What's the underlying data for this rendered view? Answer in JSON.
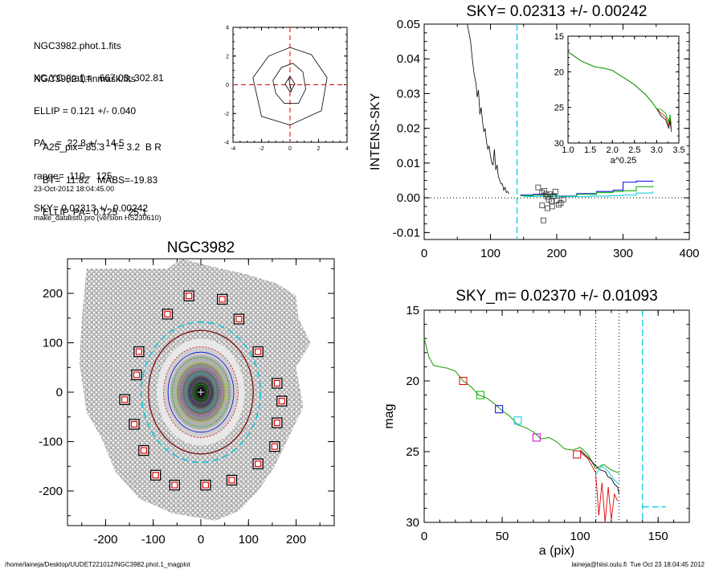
{
  "header": {
    "lines_a": [
      "NGC3982.phot.1.fits",
      "NGC3982.1.finmask.fits"
    ],
    "lines_b": [
      "XC,YC (iraf)=   667.03, 302.81",
      "ELLIP = 0.121 +/- 0.040",
      "PA    =  22.8 +/-  14.5",
      "range=  110.-  125.",
      "SKY= 0.02313 +/- 0.00242"
    ],
    "lines_c": [
      "A25_pix= 85.3   T= 3.2  B R",
      "BT=  11.82   MABS=-19.83",
      "ELLIP, PA= 0.125    25.1"
    ],
    "date_line": "23-Oct-2012 18:04:45.00",
    "program_line": "make_datalist0.pro (version HS230610)"
  },
  "footer": {
    "left": "/home/laineja/Desktop/UUDET221012/NGC3982.phot.1_magplot",
    "right": "laineja@hiisi.oulu.fi  Tue Oct 23 18:04:45 2012"
  },
  "colors": {
    "axis": "#000000",
    "red": "#e00000",
    "green": "#00b000",
    "blue": "#0000e0",
    "cyan": "#00c8e0",
    "magenta": "#d000d0",
    "gray": "#808080",
    "dark_red": "#7a0000"
  },
  "chart_data": [
    {
      "id": "contour",
      "type": "contour",
      "xlim": [
        -4,
        4
      ],
      "ylim": [
        -4,
        4
      ],
      "xticks": [
        -4,
        -2,
        0,
        2,
        4
      ],
      "yticks": [
        -4,
        -2,
        0,
        2,
        4
      ],
      "contours": [
        [
          [
            -2.6,
            0.5
          ],
          [
            -1.5,
            2.0
          ],
          [
            0,
            2.6
          ],
          [
            1.5,
            2.1
          ],
          [
            2.6,
            0.5
          ],
          [
            2.2,
            -1.8
          ],
          [
            0,
            -2.8
          ],
          [
            -2.0,
            -2.2
          ],
          [
            -2.6,
            0.5
          ]
        ],
        [
          [
            -1.2,
            0.3
          ],
          [
            -0.6,
            1.2
          ],
          [
            0.2,
            1.5
          ],
          [
            0.9,
            0.9
          ],
          [
            1.1,
            -0.3
          ],
          [
            0.6,
            -1.3
          ],
          [
            -0.4,
            -1.3
          ],
          [
            -1.0,
            -0.6
          ],
          [
            -1.2,
            0.3
          ]
        ],
        [
          [
            0,
            0.6
          ],
          [
            0.35,
            0.05
          ],
          [
            0,
            -0.5
          ],
          [
            -0.35,
            0.05
          ],
          [
            0,
            0.6
          ]
        ]
      ]
    },
    {
      "id": "sky",
      "type": "line",
      "title": "SKY= 0.02313 +/- 0.00242",
      "ylabel": "INTENS-SKY",
      "xlim": [
        0,
        400
      ],
      "ylim": [
        -0.012,
        0.05
      ],
      "xticks": [
        0,
        100,
        200,
        300,
        400
      ],
      "yticks": [
        -0.01,
        0.0,
        0.01,
        0.02,
        0.03,
        0.04,
        0.05
      ],
      "ytick_labels": [
        "-0.01",
        "0.00",
        "0.01",
        "0.02",
        "0.03",
        "0.04",
        "0.05"
      ],
      "vline": 140,
      "main_profile": [
        [
          65,
          0.05
        ],
        [
          70,
          0.045
        ],
        [
          72,
          0.041
        ],
        [
          75,
          0.036
        ],
        [
          78,
          0.033
        ],
        [
          80,
          0.029
        ],
        [
          82,
          0.031
        ],
        [
          84,
          0.024
        ],
        [
          86,
          0.026
        ],
        [
          88,
          0.022
        ],
        [
          90,
          0.019
        ],
        [
          92,
          0.02
        ],
        [
          94,
          0.016
        ],
        [
          96,
          0.014
        ],
        [
          98,
          0.015
        ],
        [
          100,
          0.012
        ],
        [
          102,
          0.01
        ],
        [
          104,
          0.0095
        ],
        [
          106,
          0.014
        ],
        [
          108,
          0.008
        ],
        [
          110,
          0.0095
        ],
        [
          112,
          0.006
        ],
        [
          114,
          0.005
        ],
        [
          116,
          0.004
        ],
        [
          118,
          0.004
        ],
        [
          120,
          0.0022
        ],
        [
          122,
          0.003
        ],
        [
          124,
          0.0015
        ],
        [
          126,
          0.0018
        ],
        [
          128,
          0.0012
        ]
      ],
      "sky_boxes": [
        [
          172,
          0.003
        ],
        [
          178,
          0.0015
        ],
        [
          181,
          0.002
        ],
        [
          184,
          0.001
        ],
        [
          186,
          0.0003
        ],
        [
          188,
          -0.0005
        ],
        [
          190,
          0.001
        ],
        [
          192,
          -0.001
        ],
        [
          195,
          0.0005
        ],
        [
          198,
          0.0018
        ],
        [
          200,
          -0.0008
        ],
        [
          203,
          -0.002
        ],
        [
          206,
          -0.0015
        ],
        [
          210,
          -0.0005
        ],
        [
          178,
          -0.0022
        ],
        [
          180,
          -0.0065
        ],
        [
          186,
          -0.003
        ],
        [
          193,
          -0.0025
        ]
      ],
      "step_series": [
        {
          "color": "#0000e0",
          "points": [
            [
              145,
              0.0008
            ],
            [
              165,
              0.001
            ],
            [
              200,
              0.0005
            ],
            [
              230,
              0.0012
            ],
            [
              260,
              0.0018
            ],
            [
              285,
              0.0022
            ],
            [
              300,
              0.0045
            ],
            [
              320,
              0.0048
            ],
            [
              345,
              0.0046
            ]
          ]
        },
        {
          "color": "#00b000",
          "points": [
            [
              145,
              0.0006
            ],
            [
              165,
              0.0008
            ],
            [
              200,
              0.0004
            ],
            [
              230,
              0.001
            ],
            [
              260,
              0.0015
            ],
            [
              285,
              0.0018
            ],
            [
              300,
              0.002
            ],
            [
              320,
              0.0032
            ],
            [
              345,
              0.0035
            ]
          ]
        },
        {
          "color": "#00c8e0",
          "points": [
            [
              150,
              0.0004
            ],
            [
              200,
              0.0003
            ],
            [
              250,
              0.0005
            ],
            [
              280,
              0.0006
            ],
            [
              300,
              0.0008
            ],
            [
              320,
              0.0014
            ],
            [
              345,
              0.0018
            ]
          ]
        }
      ],
      "inset": {
        "xlim": [
          1.0,
          3.5
        ],
        "ylim": [
          30,
          15
        ],
        "xticks": [
          1.0,
          1.5,
          2.0,
          2.5,
          3.0,
          3.5
        ],
        "xtick_labels": [
          "1.0",
          "1.5",
          "2.0",
          "2.5",
          "3.0",
          "3.5"
        ],
        "yticks": [
          15,
          20,
          25,
          30
        ],
        "xlabel": "a^0.25",
        "profile": [
          [
            1.0,
            17.2
          ],
          [
            1.3,
            18.5
          ],
          [
            1.6,
            19.3
          ],
          [
            1.8,
            19.5
          ],
          [
            2.0,
            19.8
          ],
          [
            2.2,
            20.6
          ],
          [
            2.35,
            21.2
          ],
          [
            2.5,
            21.8
          ],
          [
            2.6,
            22.4
          ],
          [
            2.75,
            23.2
          ],
          [
            2.9,
            24.3
          ],
          [
            3.0,
            25.2
          ],
          [
            3.1,
            25.8
          ],
          [
            3.2,
            26.3
          ],
          [
            3.27,
            27.5
          ],
          [
            3.3,
            26.5
          ],
          [
            3.33,
            28.0
          ]
        ]
      }
    },
    {
      "id": "galaxy",
      "type": "image",
      "title": "NGC3982",
      "xlim": [
        -280,
        280
      ],
      "ylim": [
        -270,
        270
      ],
      "xticks": [
        -200,
        -100,
        0,
        100,
        200
      ],
      "yticks": [
        -200,
        -100,
        0,
        100,
        200
      ],
      "sky_boxes": [
        [
          -25,
          195
        ],
        [
          45,
          188
        ],
        [
          -70,
          158
        ],
        [
          80,
          148
        ],
        [
          -130,
          82
        ],
        [
          120,
          82
        ],
        [
          -135,
          35
        ],
        [
          160,
          18
        ],
        [
          -160,
          -15
        ],
        [
          170,
          -18
        ],
        [
          -140,
          -65
        ],
        [
          160,
          -62
        ],
        [
          -120,
          -118
        ],
        [
          155,
          -110
        ],
        [
          -95,
          -168
        ],
        [
          120,
          -145
        ],
        [
          -55,
          -188
        ],
        [
          10,
          -188
        ],
        [
          65,
          -178
        ]
      ]
    },
    {
      "id": "mag",
      "type": "line",
      "title": "SKY_m=  0.02370 +/- 0.01093",
      "xlabel": "a (pix)",
      "ylabel": "mag",
      "xlim": [
        0,
        170
      ],
      "ylim": [
        30,
        15
      ],
      "xticks": [
        0,
        50,
        100,
        150
      ],
      "yticks": [
        15,
        20,
        25,
        30
      ],
      "vlines_dotted": [
        110,
        125
      ],
      "vline_dashed": 140,
      "cyan_tail": [
        [
          140,
          28.9
        ],
        [
          155,
          28.9
        ]
      ],
      "profile_green": [
        [
          0,
          17.0
        ],
        [
          3,
          18.3
        ],
        [
          6,
          18.9
        ],
        [
          10,
          19.0
        ],
        [
          15,
          19.1
        ],
        [
          20,
          19.3
        ],
        [
          25,
          20.0
        ],
        [
          30,
          20.4
        ],
        [
          35,
          21.0
        ],
        [
          40,
          21.2
        ],
        [
          45,
          21.6
        ],
        [
          50,
          22.1
        ],
        [
          55,
          22.5
        ],
        [
          60,
          23.1
        ],
        [
          65,
          23.3
        ],
        [
          70,
          23.6
        ],
        [
          75,
          24.1
        ],
        [
          80,
          24.0
        ],
        [
          85,
          24.3
        ],
        [
          90,
          24.8
        ],
        [
          95,
          24.9
        ],
        [
          100,
          24.7
        ],
        [
          105,
          25.2
        ],
        [
          110,
          26.2
        ],
        [
          115,
          25.9
        ],
        [
          120,
          26.3
        ],
        [
          125,
          26.5
        ]
      ],
      "profile_black": [
        [
          100,
          24.9
        ],
        [
          105,
          25.4
        ],
        [
          110,
          26.0
        ],
        [
          113,
          26.3
        ],
        [
          116,
          26.4
        ],
        [
          118,
          26.8
        ],
        [
          120,
          26.9
        ],
        [
          122,
          27.3
        ],
        [
          124,
          27.5
        ],
        [
          125,
          28.0
        ]
      ],
      "profile_red": [
        [
          100,
          25.0
        ],
        [
          105,
          25.5
        ],
        [
          110,
          26.5
        ],
        [
          112,
          29.5
        ],
        [
          114,
          27.2
        ],
        [
          116,
          30.0
        ],
        [
          118,
          27.5
        ],
        [
          120,
          29.8
        ],
        [
          122,
          28.0
        ],
        [
          124,
          28.5
        ]
      ],
      "profile_cyan": [
        [
          110,
          26.6
        ],
        [
          114,
          26.0
        ],
        [
          118,
          26.4
        ],
        [
          122,
          27.0
        ],
        [
          125,
          27.3
        ]
      ],
      "squares": [
        {
          "x": 25,
          "y": 20.0,
          "color": "#e00000"
        },
        {
          "x": 36,
          "y": 21.0,
          "color": "#00b000"
        },
        {
          "x": 48,
          "y": 22.0,
          "color": "#0000e0"
        },
        {
          "x": 60,
          "y": 22.8,
          "color": "#00c8e0"
        },
        {
          "x": 72,
          "y": 24.0,
          "color": "#d000d0"
        },
        {
          "x": 98,
          "y": 25.2,
          "color": "#e00000"
        }
      ]
    }
  ]
}
